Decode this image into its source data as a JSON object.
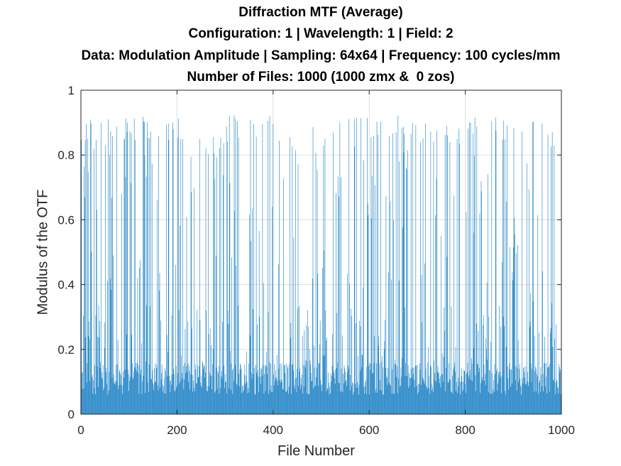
{
  "chart_data": {
    "type": "bar",
    "title_lines": [
      "Diffraction MTF (Average)",
      "Configuration: 1 | Wavelength: 1 | Field: 2",
      "Data: Modulation Amplitude | Sampling: 64x64 | Frequency: 100 cycles/mm",
      "Number of Files: 1000 (1000 zmx &  0 zos)"
    ],
    "xlabel": "File Number",
    "ylabel": "Modulus of the OTF",
    "xlim": [
      0,
      1000
    ],
    "ylim": [
      0,
      1
    ],
    "x_ticks": [
      "0",
      "200",
      "400",
      "600",
      "800",
      "1000"
    ],
    "y_ticks": [
      "0",
      "0.2",
      "0.4",
      "0.6",
      "0.8",
      "1"
    ],
    "grid": true,
    "bar_color": "#0072BD",
    "n_points": 1000,
    "baseline_range": [
      0.06,
      0.16
    ],
    "peak_max": 0.925,
    "segments": [
      {
        "x_range": [
          1,
          110
        ],
        "max": 0.92,
        "spike_density": "high"
      },
      {
        "x_range": [
          110,
          230
        ],
        "max": 0.925,
        "spike_density": "high"
      },
      {
        "x_range": [
          230,
          300
        ],
        "max": 0.86,
        "spike_density": "medium"
      },
      {
        "x_range": [
          300,
          400
        ],
        "max": 0.925,
        "spike_density": "high"
      },
      {
        "x_range": [
          400,
          480
        ],
        "max": 0.86,
        "spike_density": "low"
      },
      {
        "x_range": [
          480,
          600
        ],
        "max": 0.925,
        "spike_density": "high"
      },
      {
        "x_range": [
          600,
          700
        ],
        "max": 0.925,
        "spike_density": "high"
      },
      {
        "x_range": [
          700,
          800
        ],
        "max": 0.91,
        "spike_density": "medium"
      },
      {
        "x_range": [
          800,
          1000
        ],
        "max": 0.925,
        "spike_density": "high"
      }
    ]
  }
}
